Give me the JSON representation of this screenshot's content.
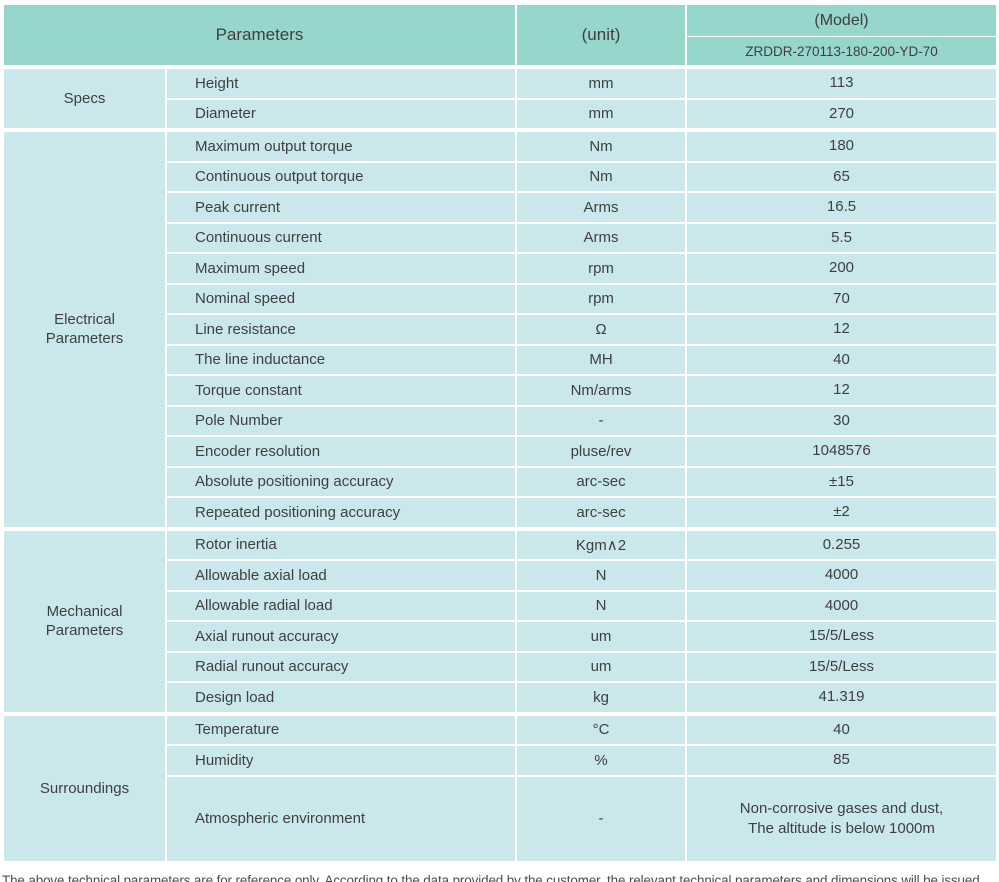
{
  "colors": {
    "header_bg": "#97d6cd",
    "cell_bg": "#cae7ec",
    "text": "#3f3f3f"
  },
  "table": {
    "header": {
      "parameters_label": "Parameters",
      "unit_label": "(unit)",
      "model_label": "(Model)",
      "model_code": "ZRDDR-270113-180-200-YD-70"
    },
    "groups": [
      {
        "category": "Specs",
        "rows": [
          {
            "name": "Height",
            "unit": "mm",
            "value": "113"
          },
          {
            "name": "Diameter",
            "unit": "mm",
            "value": "270"
          }
        ]
      },
      {
        "category": "Electrical\nParameters",
        "rows": [
          {
            "name": "Maximum output torque",
            "unit": "Nm",
            "value": "180"
          },
          {
            "name": "Continuous output torque",
            "unit": "Nm",
            "value": "65"
          },
          {
            "name": "Peak current",
            "unit": "Arms",
            "value": "16.5"
          },
          {
            "name": "Continuous current",
            "unit": "Arms",
            "value": "5.5"
          },
          {
            "name": "Maximum speed",
            "unit": "rpm",
            "value": "200"
          },
          {
            "name": "Nominal speed",
            "unit": "rpm",
            "value": "70"
          },
          {
            "name": "Line resistance",
            "unit": "Ω",
            "value": "12"
          },
          {
            "name": "The line inductance",
            "unit": "MH",
            "value": "40"
          },
          {
            "name": "Torque constant",
            "unit": "Nm/arms",
            "value": "12"
          },
          {
            "name": "Pole Number",
            "unit": "-",
            "value": "30"
          },
          {
            "name": "Encoder resolution",
            "unit": "pluse/rev",
            "value": "1048576"
          },
          {
            "name": "Absolute positioning accuracy",
            "unit": "arc-sec",
            "value": "±15"
          },
          {
            "name": "Repeated positioning accuracy",
            "unit": "arc-sec",
            "value": "±2"
          }
        ]
      },
      {
        "category": "Mechanical\nParameters",
        "rows": [
          {
            "name": "Rotor inertia",
            "unit": "Kgm∧2",
            "value": "0.255"
          },
          {
            "name": "Allowable axial load",
            "unit": "N",
            "value": "4000"
          },
          {
            "name": "Allowable radial load",
            "unit": "N",
            "value": "4000"
          },
          {
            "name": "Axial runout accuracy",
            "unit": "um",
            "value": "15/5/Less"
          },
          {
            "name": "Radial runout accuracy",
            "unit": "um",
            "value": "15/5/Less"
          },
          {
            "name": "Design load",
            "unit": "kg",
            "value": "41.319"
          }
        ]
      },
      {
        "category": "Surroundings",
        "rows": [
          {
            "name": "Temperature",
            "unit": "°C",
            "value": "40"
          },
          {
            "name": "Humidity",
            "unit": "%",
            "value": "85"
          },
          {
            "name": "Atmospheric environment",
            "unit": "-",
            "value": "Non-corrosive gases and dust,\nThe altitude is below 1000m",
            "tall": true
          }
        ]
      }
    ]
  },
  "footer": {
    "note": "The above technical parameters are for reference only. According to the data provided by the customer, the relevant technical parameters and dimensions will be issued."
  }
}
